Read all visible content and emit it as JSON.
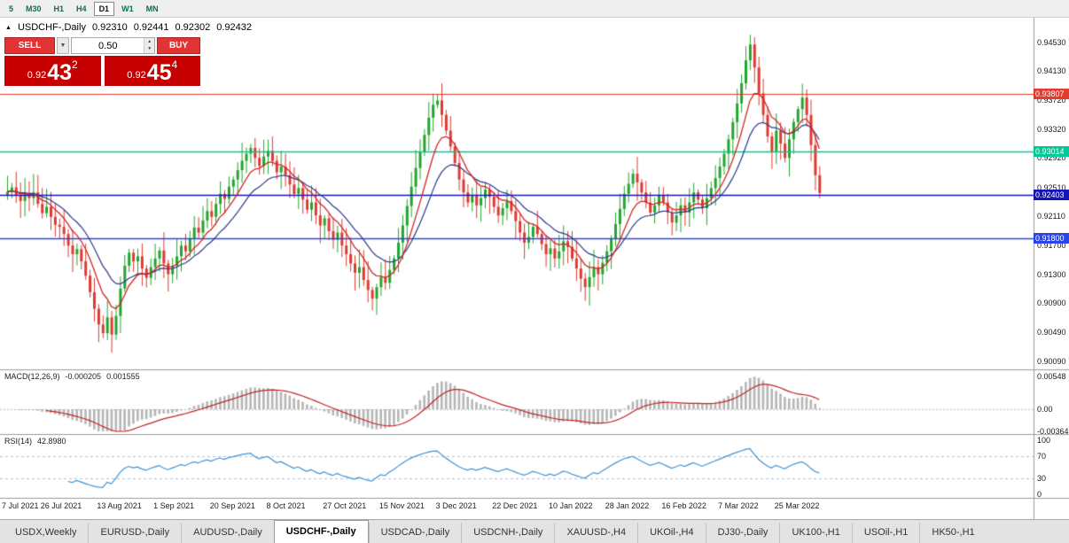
{
  "toolbar": {
    "timeframes": [
      {
        "label": "5",
        "active": false
      },
      {
        "label": "M30",
        "active": false
      },
      {
        "label": "H1",
        "active": false
      },
      {
        "label": "H4",
        "active": false
      },
      {
        "label": "D1",
        "active": true
      },
      {
        "label": "W1",
        "active": false
      },
      {
        "label": "MN",
        "active": false
      }
    ]
  },
  "chart": {
    "header": {
      "marker": "▲",
      "symbol": "USDCHF-,Daily",
      "open": "0.92310",
      "high": "0.92441",
      "low": "0.92302",
      "close": "0.92432"
    }
  },
  "trade_panel": {
    "sell_label": "SELL",
    "buy_label": "BUY",
    "volume": "0.50",
    "dropdown_glyph": "▼",
    "stepper_up_glyph": "▲",
    "stepper_down_glyph": "▼",
    "sell_price": {
      "prefix": "0.92",
      "big": "43",
      "sup": "2"
    },
    "buy_price": {
      "prefix": "0.92",
      "big": "45",
      "sup": "4"
    }
  },
  "price_axis": {
    "labels": [
      {
        "text": "0.94530",
        "price": 0.9453
      },
      {
        "text": "0.94130",
        "price": 0.9413
      },
      {
        "text": "0.93720",
        "price": 0.9372
      },
      {
        "text": "0.93320",
        "price": 0.9332
      },
      {
        "text": "0.92920",
        "price": 0.9292
      },
      {
        "text": "0.92510",
        "price": 0.9251
      },
      {
        "text": "0.92110",
        "price": 0.9211
      },
      {
        "text": "0.91700",
        "price": 0.917
      },
      {
        "text": "0.91300",
        "price": 0.913
      },
      {
        "text": "0.90900",
        "price": 0.909
      },
      {
        "text": "0.90490",
        "price": 0.9049
      },
      {
        "text": "0.90090",
        "price": 0.9009
      }
    ],
    "badges": [
      {
        "text": "0.93807",
        "price": 0.93807,
        "color": "#e23b30",
        "line_width": 1.2
      },
      {
        "text": "0.93014",
        "price": 0.93014,
        "color": "#00c896",
        "line_width": 1.6
      },
      {
        "text": "0.92403",
        "price": 0.92403,
        "color": "#1616b6",
        "line_width": 1.6
      },
      {
        "text": "0.91800",
        "price": 0.918,
        "color": "#2a46e8",
        "line_width": 1.6
      }
    ]
  },
  "macd": {
    "title": "MACD(12,26,9)",
    "value": "-0.000205",
    "signal_value": "0.001555",
    "axis": [
      {
        "text": "0.00548",
        "value": 0.00548
      },
      {
        "text": "0.00",
        "value": 0
      },
      {
        "text": "-0.00364",
        "value": -0.00364
      }
    ]
  },
  "rsi": {
    "title": "RSI(14)",
    "value": "42.8980",
    "axis": [
      {
        "text": "100",
        "value": 100
      },
      {
        "text": "70",
        "value": 70
      },
      {
        "text": "30",
        "value": 30
      },
      {
        "text": "0",
        "value": 0
      }
    ],
    "levels": [
      70,
      30
    ]
  },
  "tabs": [
    {
      "label": "USDX,Weekly",
      "active": false
    },
    {
      "label": "EURUSD-,Daily",
      "active": false
    },
    {
      "label": "AUDUSD-,Daily",
      "active": false
    },
    {
      "label": "USDCHF-,Daily",
      "active": true
    },
    {
      "label": "USDCAD-,Daily",
      "active": false
    },
    {
      "label": "USDCNH-,Daily",
      "active": false
    },
    {
      "label": "XAUUSD-,H4",
      "active": false
    },
    {
      "label": "UKOil-,H4",
      "active": false
    },
    {
      "label": "DJ30-,Daily",
      "active": false
    },
    {
      "label": "UK100-,H1",
      "active": false
    },
    {
      "label": "USOil-,H1",
      "active": false
    },
    {
      "label": "HK50-,H1",
      "active": false
    }
  ],
  "colors": {
    "up": "#23a52e",
    "down": "#dd3b32",
    "ma_fast": "#d42525",
    "ma_slow": "#2b3a8c",
    "macd_hist": "#b6b6b6",
    "macd_signal": "#c32222",
    "rsi": "#3f93d4"
  },
  "chart_data": {
    "type": "candlestick",
    "title": "USDCHF-,Daily",
    "ohlc_display": {
      "open": "0.92310",
      "high": "0.92441",
      "low": "0.92302",
      "close": "0.92432"
    },
    "ylim": [
      0.9,
      0.9475
    ],
    "bars_per_label": 13,
    "first_open": 0.924,
    "date_labels": [
      "7 Jul 2021",
      "26 Jul 2021",
      "13 Aug 2021",
      "1 Sep 2021",
      "20 Sep 2021",
      "8 Oct 2021",
      "27 Oct 2021",
      "15 Nov 2021",
      "3 Dec 2021",
      "22 Dec 2021",
      "10 Jan 2022",
      "28 Jan 2022",
      "16 Feb 2022",
      "7 Mar 2022",
      "25 Mar 2022"
    ],
    "closes": [
      0.9245,
      0.9251,
      0.924,
      0.9232,
      0.9243,
      0.9236,
      0.9244,
      0.9228,
      0.9215,
      0.9224,
      0.921,
      0.9199,
      0.9196,
      0.9186,
      0.917,
      0.9158,
      0.9165,
      0.9148,
      0.9128,
      0.9105,
      0.9082,
      0.906,
      0.9048,
      0.907,
      0.9046,
      0.9072,
      0.911,
      0.9142,
      0.916,
      0.9148,
      0.9155,
      0.9138,
      0.9125,
      0.914,
      0.9152,
      0.9163,
      0.9145,
      0.913,
      0.9142,
      0.9155,
      0.917,
      0.9162,
      0.918,
      0.9195,
      0.9188,
      0.9205,
      0.9218,
      0.921,
      0.9228,
      0.9242,
      0.9235,
      0.9252,
      0.9262,
      0.9275,
      0.9288,
      0.9298,
      0.9306,
      0.9292,
      0.9281,
      0.9294,
      0.9302,
      0.9288,
      0.9272,
      0.928,
      0.9268,
      0.9255,
      0.9242,
      0.925,
      0.9234,
      0.922,
      0.923,
      0.9212,
      0.9198,
      0.9208,
      0.919,
      0.9178,
      0.9188,
      0.917,
      0.9158,
      0.9145,
      0.9132,
      0.914,
      0.9122,
      0.9108,
      0.9096,
      0.9112,
      0.9126,
      0.9118,
      0.9136,
      0.9152,
      0.9174,
      0.9198,
      0.9225,
      0.9252,
      0.9278,
      0.93,
      0.9324,
      0.9348,
      0.9366,
      0.9372,
      0.9352,
      0.933,
      0.9308,
      0.9285,
      0.9262,
      0.9244,
      0.923,
      0.924,
      0.9226,
      0.9236,
      0.9248,
      0.9238,
      0.9224,
      0.9212,
      0.9222,
      0.9232,
      0.9218,
      0.9204,
      0.9188,
      0.9174,
      0.9182,
      0.9196,
      0.9186,
      0.9172,
      0.9158,
      0.9166,
      0.9152,
      0.9162,
      0.9176,
      0.9168,
      0.9152,
      0.9138,
      0.9124,
      0.9112,
      0.9126,
      0.914,
      0.913,
      0.9146,
      0.9162,
      0.918,
      0.92,
      0.9221,
      0.9242,
      0.9256,
      0.927,
      0.9258,
      0.9244,
      0.923,
      0.9216,
      0.9226,
      0.924,
      0.923,
      0.9216,
      0.9202,
      0.9212,
      0.9226,
      0.9216,
      0.923,
      0.9244,
      0.9234,
      0.9222,
      0.9236,
      0.925,
      0.9264,
      0.928,
      0.9298,
      0.9318,
      0.9342,
      0.9368,
      0.9396,
      0.9428,
      0.945,
      0.9418,
      0.9382,
      0.9352,
      0.9322,
      0.93,
      0.933,
      0.9312,
      0.9292,
      0.9318,
      0.9342,
      0.936,
      0.9376,
      0.9352,
      0.931,
      0.9268,
      0.92432
    ]
  }
}
